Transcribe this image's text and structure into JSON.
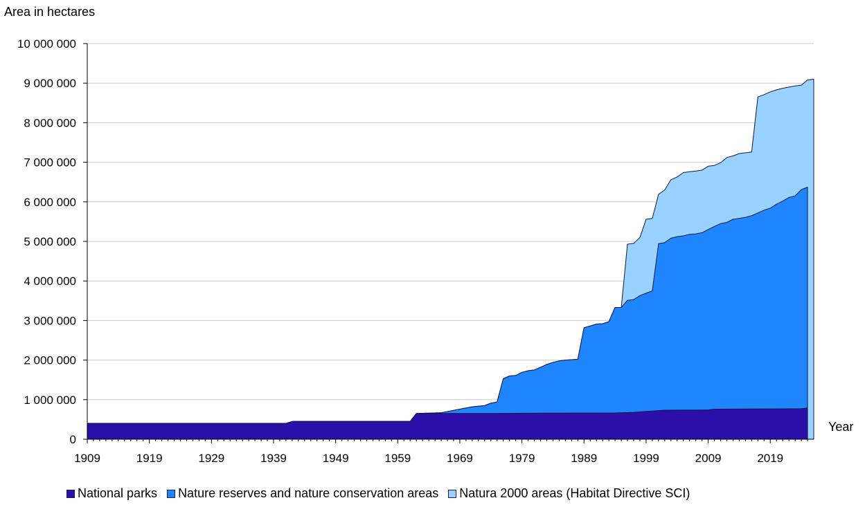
{
  "chart_data": {
    "type": "area",
    "stacked": true,
    "ylabel": "Area in hectares",
    "xlabel": "Year",
    "ylim": [
      0,
      10000000
    ],
    "xlim": [
      1909,
      2025
    ],
    "grid": true,
    "legend_position": "bottom",
    "y_ticks": [
      {
        "value": 0,
        "label": "0"
      },
      {
        "value": 1000000,
        "label": "1 000 000"
      },
      {
        "value": 2000000,
        "label": "2 000 000"
      },
      {
        "value": 3000000,
        "label": "3 000 000"
      },
      {
        "value": 4000000,
        "label": "4 000 000"
      },
      {
        "value": 5000000,
        "label": "5 000 000"
      },
      {
        "value": 6000000,
        "label": "6 000 000"
      },
      {
        "value": 7000000,
        "label": "7 000 000"
      },
      {
        "value": 8000000,
        "label": "8 000 000"
      },
      {
        "value": 9000000,
        "label": "9 000 000"
      },
      {
        "value": 10000000,
        "label": "10 000 000"
      }
    ],
    "x_ticks": [
      {
        "value": 1909,
        "label": "1909"
      },
      {
        "value": 1919,
        "label": "1919"
      },
      {
        "value": 1929,
        "label": "1929"
      },
      {
        "value": 1939,
        "label": "1939"
      },
      {
        "value": 1949,
        "label": "1949"
      },
      {
        "value": 1959,
        "label": "1959"
      },
      {
        "value": 1969,
        "label": "1969"
      },
      {
        "value": 1979,
        "label": "1979"
      },
      {
        "value": 1989,
        "label": "1989"
      },
      {
        "value": 1999,
        "label": "1999"
      },
      {
        "value": 2009,
        "label": "2009"
      },
      {
        "value": 2019,
        "label": "2019"
      }
    ],
    "series": [
      {
        "name": "National parks",
        "color": "#2b0fa8",
        "points": [
          [
            1909,
            400000
          ],
          [
            1941,
            400000
          ],
          [
            1942,
            450000
          ],
          [
            1959,
            450000
          ],
          [
            1961,
            450000
          ],
          [
            1962,
            650000
          ],
          [
            1966,
            650000
          ],
          [
            1975,
            650000
          ],
          [
            1982,
            660000
          ],
          [
            1994,
            665000
          ],
          [
            1997,
            680000
          ],
          [
            2002,
            735000
          ],
          [
            2009,
            740000
          ],
          [
            2010,
            760000
          ],
          [
            2024,
            770000
          ],
          [
            2025,
            790000
          ]
        ]
      },
      {
        "name": "Nature reserves and nature conservation areas",
        "color": "#1f86ff",
        "points": [
          [
            1909,
            400000
          ],
          [
            1941,
            400000
          ],
          [
            1942,
            450000
          ],
          [
            1959,
            450000
          ],
          [
            1961,
            450000
          ],
          [
            1962,
            650000
          ],
          [
            1966,
            670000
          ],
          [
            1967,
            700000
          ],
          [
            1969,
            760000
          ],
          [
            1971,
            820000
          ],
          [
            1973,
            850000
          ],
          [
            1974,
            910000
          ],
          [
            1975,
            940000
          ],
          [
            1976,
            1530000
          ],
          [
            1977,
            1600000
          ],
          [
            1978,
            1610000
          ],
          [
            1979,
            1690000
          ],
          [
            1980,
            1730000
          ],
          [
            1981,
            1750000
          ],
          [
            1982,
            1820000
          ],
          [
            1983,
            1890000
          ],
          [
            1984,
            1940000
          ],
          [
            1985,
            1980000
          ],
          [
            1986,
            2000000
          ],
          [
            1987,
            2010000
          ],
          [
            1988,
            2020000
          ],
          [
            1989,
            2820000
          ],
          [
            1990,
            2860000
          ],
          [
            1991,
            2910000
          ],
          [
            1992,
            2920000
          ],
          [
            1993,
            2970000
          ],
          [
            1994,
            3330000
          ],
          [
            1995,
            3330000
          ],
          [
            1996,
            3510000
          ],
          [
            1997,
            3530000
          ],
          [
            1998,
            3630000
          ],
          [
            1999,
            3690000
          ],
          [
            2000,
            3750000
          ],
          [
            2001,
            4940000
          ],
          [
            2002,
            4970000
          ],
          [
            2003,
            5080000
          ],
          [
            2004,
            5120000
          ],
          [
            2005,
            5140000
          ],
          [
            2006,
            5180000
          ],
          [
            2007,
            5190000
          ],
          [
            2008,
            5220000
          ],
          [
            2009,
            5300000
          ],
          [
            2010,
            5380000
          ],
          [
            2011,
            5450000
          ],
          [
            2012,
            5480000
          ],
          [
            2013,
            5560000
          ],
          [
            2014,
            5580000
          ],
          [
            2015,
            5610000
          ],
          [
            2016,
            5650000
          ],
          [
            2017,
            5720000
          ],
          [
            2018,
            5790000
          ],
          [
            2019,
            5840000
          ],
          [
            2020,
            5940000
          ],
          [
            2021,
            6020000
          ],
          [
            2022,
            6110000
          ],
          [
            2023,
            6150000
          ],
          [
            2024,
            6310000
          ],
          [
            2025,
            6370000
          ]
        ]
      },
      {
        "name": "Natura 2000 areas (Habitat Directive SCI)",
        "color": "#99d1ff",
        "points": [
          [
            1909,
            400000
          ],
          [
            1941,
            400000
          ],
          [
            1942,
            450000
          ],
          [
            1959,
            450000
          ],
          [
            1961,
            450000
          ],
          [
            1962,
            650000
          ],
          [
            1966,
            670000
          ],
          [
            1967,
            700000
          ],
          [
            1969,
            760000
          ],
          [
            1971,
            820000
          ],
          [
            1973,
            850000
          ],
          [
            1974,
            910000
          ],
          [
            1975,
            940000
          ],
          [
            1976,
            1530000
          ],
          [
            1977,
            1600000
          ],
          [
            1978,
            1610000
          ],
          [
            1979,
            1690000
          ],
          [
            1980,
            1730000
          ],
          [
            1981,
            1750000
          ],
          [
            1982,
            1820000
          ],
          [
            1983,
            1890000
          ],
          [
            1984,
            1940000
          ],
          [
            1985,
            1980000
          ],
          [
            1986,
            2000000
          ],
          [
            1987,
            2010000
          ],
          [
            1988,
            2020000
          ],
          [
            1989,
            2820000
          ],
          [
            1990,
            2860000
          ],
          [
            1991,
            2910000
          ],
          [
            1992,
            2920000
          ],
          [
            1993,
            2970000
          ],
          [
            1994,
            3330000
          ],
          [
            1995,
            3330000
          ],
          [
            1996,
            4930000
          ],
          [
            1997,
            4950000
          ],
          [
            1998,
            5100000
          ],
          [
            1999,
            5560000
          ],
          [
            2000,
            5580000
          ],
          [
            2001,
            6190000
          ],
          [
            2002,
            6300000
          ],
          [
            2003,
            6560000
          ],
          [
            2004,
            6630000
          ],
          [
            2005,
            6740000
          ],
          [
            2006,
            6760000
          ],
          [
            2007,
            6780000
          ],
          [
            2008,
            6800000
          ],
          [
            2009,
            6900000
          ],
          [
            2010,
            6920000
          ],
          [
            2011,
            6990000
          ],
          [
            2012,
            7120000
          ],
          [
            2013,
            7160000
          ],
          [
            2014,
            7220000
          ],
          [
            2015,
            7240000
          ],
          [
            2016,
            7260000
          ],
          [
            2017,
            8650000
          ],
          [
            2018,
            8710000
          ],
          [
            2019,
            8780000
          ],
          [
            2020,
            8830000
          ],
          [
            2021,
            8870000
          ],
          [
            2022,
            8900000
          ],
          [
            2023,
            8930000
          ],
          [
            2024,
            8950000
          ],
          [
            2025,
            9080000
          ],
          [
            2026,
            9100000
          ]
        ]
      }
    ]
  }
}
